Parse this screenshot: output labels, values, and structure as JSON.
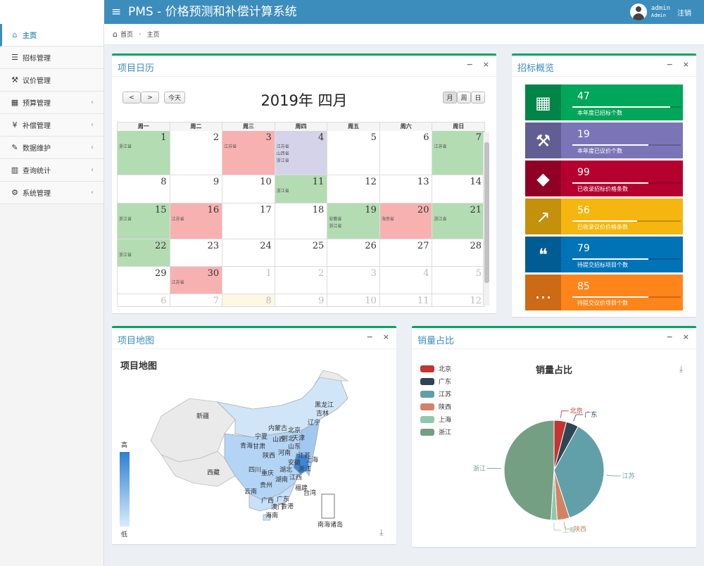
{
  "header": {
    "app_title": "PMS - 价格预测和补偿计算系统",
    "menu_icon": "hamburger-icon",
    "user_name": "admin",
    "user_role": "Admin",
    "logout_label": "注销"
  },
  "sidebar": {
    "items": [
      {
        "label": "主页",
        "icon": "home-icon",
        "active": true
      },
      {
        "label": "招标管理",
        "icon": "list-icon"
      },
      {
        "label": "议价管理",
        "icon": "gavel-icon"
      },
      {
        "label": "预算管理",
        "icon": "calendar-icon",
        "has_sub": true
      },
      {
        "label": "补偿管理",
        "icon": "yen-icon",
        "has_sub": true
      },
      {
        "label": "数据维护",
        "icon": "edit-icon",
        "has_sub": true
      },
      {
        "label": "查询统计",
        "icon": "bar-chart-icon",
        "has_sub": true
      },
      {
        "label": "系统管理",
        "icon": "cogs-icon",
        "has_sub": true
      }
    ]
  },
  "breadcrumb": {
    "home": "首页",
    "current": "主页"
  },
  "calendar": {
    "box_title": "项目日历",
    "title": "2019年 四月",
    "today_label": "今天",
    "prev": "<",
    "next": ">",
    "view_month": "月",
    "view_week": "周",
    "view_day": "日",
    "weekdays": [
      "周一",
      "周二",
      "周三",
      "周四",
      "周五",
      "周六",
      "周日"
    ],
    "rows": [
      [
        {
          "d": "1",
          "c": "g",
          "ev": [
            "浙江省"
          ]
        },
        {
          "d": "2"
        },
        {
          "d": "3",
          "c": "r",
          "ev": [
            "江苏省"
          ]
        },
        {
          "d": "4",
          "c": "p",
          "ev": [
            "江苏省",
            "山西省",
            "浙江省"
          ]
        },
        {
          "d": "5"
        },
        {
          "d": "6"
        },
        {
          "d": "7",
          "c": "g",
          "ev": [
            "江苏省"
          ]
        }
      ],
      [
        {
          "d": "8"
        },
        {
          "d": "9"
        },
        {
          "d": "10"
        },
        {
          "d": "11",
          "c": "g",
          "ev": [
            "浙江省"
          ]
        },
        {
          "d": "12"
        },
        {
          "d": "13"
        },
        {
          "d": "14"
        }
      ],
      [
        {
          "d": "15",
          "c": "g",
          "ev": [
            "浙江省"
          ]
        },
        {
          "d": "16",
          "c": "r",
          "ev": [
            "江苏省"
          ]
        },
        {
          "d": "17"
        },
        {
          "d": "18"
        },
        {
          "d": "19",
          "c": "g",
          "ev": [
            "安徽省",
            "浙江省"
          ]
        },
        {
          "d": "20",
          "c": "r",
          "ev": [
            "海南省"
          ]
        },
        {
          "d": "21",
          "c": "g",
          "ev": [
            "浙江省"
          ]
        }
      ],
      [
        {
          "d": "22",
          "c": "g",
          "ev": [
            "浙江省"
          ]
        },
        {
          "d": "23"
        },
        {
          "d": "24"
        },
        {
          "d": "25"
        },
        {
          "d": "26"
        },
        {
          "d": "27"
        },
        {
          "d": "28"
        }
      ],
      [
        {
          "d": "29"
        },
        {
          "d": "30",
          "c": "r",
          "ev": [
            "江苏省"
          ]
        },
        {
          "d": "1",
          "o": true
        },
        {
          "d": "2",
          "o": true
        },
        {
          "d": "3",
          "o": true
        },
        {
          "d": "4",
          "o": true
        },
        {
          "d": "5",
          "o": true
        }
      ],
      [
        {
          "d": "6",
          "o": true
        },
        {
          "d": "7",
          "o": true
        },
        {
          "d": "8",
          "o": true,
          "c": "y"
        },
        {
          "d": "9",
          "o": true
        },
        {
          "d": "10",
          "o": true
        },
        {
          "d": "11",
          "o": true
        },
        {
          "d": "12",
          "o": true
        }
      ]
    ],
    "colors": {
      "g": "#b3dcb3",
      "r": "#f8b1b1",
      "p": "#d5d3ea",
      "y": "#fcf8e3"
    }
  },
  "overview": {
    "box_title": "招标概览",
    "cards": [
      {
        "value": "47",
        "label": "本年度已招标个数",
        "color": "#00a65a",
        "icon": "calendar-grid-icon",
        "glyph": "▦",
        "fill": 0.9
      },
      {
        "value": "19",
        "label": "本年度已议价个数",
        "color": "#7b75b8",
        "icon": "gavel-icon",
        "glyph": "⚒",
        "fill": 0.7
      },
      {
        "value": "99",
        "label": "已收录招标价格条数",
        "color": "#b5002f",
        "icon": "tag-icon",
        "glyph": "◆",
        "fill": 0.7
      },
      {
        "value": "56",
        "label": "已收录议价价格条数",
        "color": "#f5b60f",
        "icon": "line-chart-icon",
        "glyph": "↗",
        "fill": 0.6
      },
      {
        "value": "79",
        "label": "待提交招标项目个数",
        "color": "#0073b7",
        "icon": "comments-icon",
        "glyph": "❝",
        "fill": 0.7
      },
      {
        "value": "85",
        "label": "待提交议价项目个数",
        "color": "#ff851b",
        "icon": "comment-dots-icon",
        "glyph": "…",
        "fill": 0.7
      }
    ]
  },
  "map": {
    "box_title": "项目地图",
    "chart_title": "项目地图",
    "legend_high": "高",
    "legend_low": "低",
    "provinces": [
      "新疆",
      "西藏",
      "内蒙古",
      "黑龙江",
      "吉林",
      "辽宁",
      "北京",
      "天津",
      "河北",
      "山西",
      "宁夏",
      "青海",
      "甘肃",
      "陕西",
      "河南",
      "山东",
      "江苏",
      "安徽",
      "上海",
      "湖北",
      "浙江",
      "四川",
      "重庆",
      "湖南",
      "江西",
      "福建",
      "台湾",
      "云南",
      "贵州",
      "广西",
      "广东",
      "香港",
      "澳门",
      "海南",
      "南海诸岛"
    ]
  },
  "sales": {
    "box_title": "销量占比",
    "chart_data": {
      "type": "pie",
      "title": "销量占比",
      "categories": [
        "北京",
        "广东",
        "江苏",
        "陕西",
        "上海",
        "浙江"
      ],
      "values": [
        4,
        4,
        37,
        4,
        2,
        49
      ],
      "colors": [
        "#c23531",
        "#2f4554",
        "#61a0a8",
        "#d48265",
        "#91c7ae",
        "#749f83"
      ]
    }
  }
}
